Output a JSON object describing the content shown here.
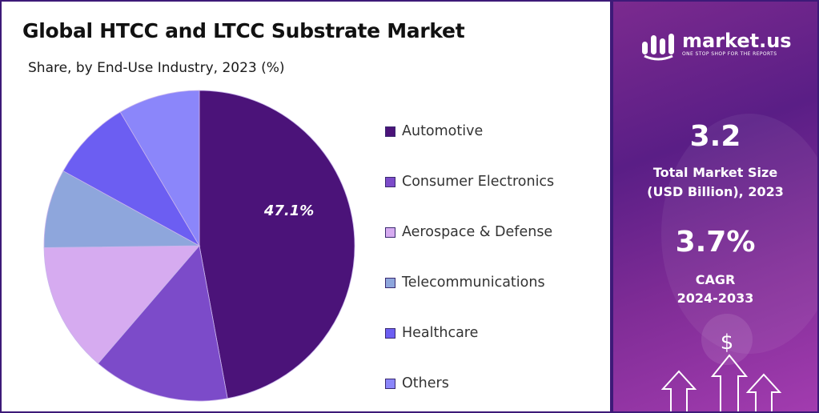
{
  "header": {
    "title": "Global HTCC and LTCC Substrate Market",
    "subtitle": "Share, by End-Use Industry, 2023 (%)"
  },
  "chart_data": {
    "type": "pie",
    "title": "Global HTCC and LTCC Substrate Market",
    "subtitle": "Share, by End-Use Industry, 2023 (%)",
    "categories": [
      "Automotive",
      "Consumer Electronics",
      "Aerospace & Defense",
      "Telecommunications",
      "Healthcare",
      "Others"
    ],
    "values": [
      47.1,
      14.2,
      13.5,
      8.2,
      8.5,
      8.5
    ],
    "colors": [
      "#4b1379",
      "#7c4bc9",
      "#d6abf0",
      "#8ea6dc",
      "#6c5ef2",
      "#8b86fa"
    ],
    "data_labels": [
      "47.1%",
      "",
      "",
      "",
      "",
      ""
    ],
    "legend_position": "right"
  },
  "sidebar": {
    "brand": "market.us",
    "tagline": "ONE STOP SHOP FOR THE REPORTS",
    "market_size_value": "3.2",
    "market_size_label_line1": "Total Market Size",
    "market_size_label_line2": "(USD Billion), 2023",
    "cagr_value": "3.7%",
    "cagr_label_line1": "CAGR",
    "cagr_label_line2": "2024-2033",
    "dollar_symbol": "$"
  }
}
